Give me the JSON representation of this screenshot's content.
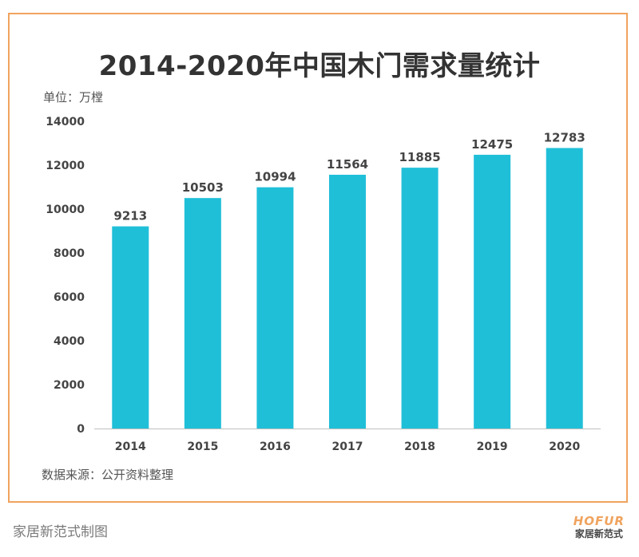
{
  "header": {
    "title": "2014-2020年中国木门需求量统计",
    "unit": "单位：万樘"
  },
  "footer": {
    "source": "数据来源：公开资料整理",
    "credit": "家居新范式制图",
    "brand_en": "HOFUR",
    "brand_cn": "家居新范式"
  },
  "colors": {
    "bar": "#20bfd8",
    "border": "#f0a35e",
    "axis": "#bfbfbf"
  },
  "chart_data": {
    "type": "bar",
    "categories": [
      "2014",
      "2015",
      "2016",
      "2017",
      "2018",
      "2019",
      "2020"
    ],
    "values": [
      9213,
      10503,
      10994,
      11564,
      11885,
      12475,
      12783
    ],
    "ylim": [
      0,
      14000
    ],
    "yticks": [
      0,
      2000,
      4000,
      6000,
      8000,
      10000,
      12000,
      14000
    ],
    "title": "2014-2020年中国木门需求量统计",
    "ylabel": "单位：万樘",
    "grid": false,
    "data_labels": true
  }
}
